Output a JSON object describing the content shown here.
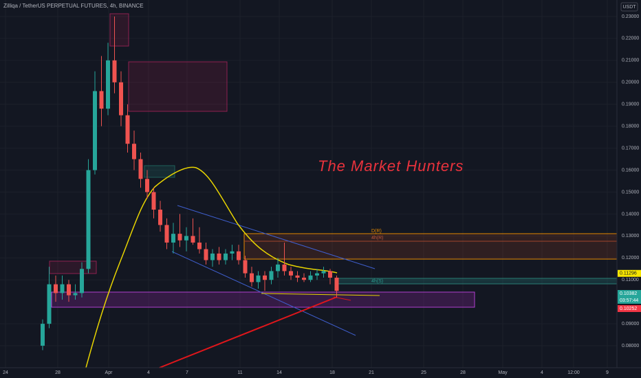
{
  "header": {
    "title": "Zilliqa / TetherUS PERPETUAL FUTURES, 4h, BINANCE",
    "currency": "USDT"
  },
  "watermark": "The Market Hunters",
  "zone_labels": [
    "D(R)",
    "4h(R)",
    "4h(S)"
  ],
  "chart_data": {
    "type": "candlestick",
    "up_color": "#26a69a",
    "down_color": "#ef5350",
    "candles": [
      [
        0.08,
        0.092,
        0.078,
        0.09
      ],
      [
        0.09,
        0.116,
        0.088,
        0.108
      ],
      [
        0.108,
        0.112,
        0.1,
        0.104
      ],
      [
        0.104,
        0.112,
        0.101,
        0.108
      ],
      [
        0.108,
        0.11,
        0.1,
        0.103
      ],
      [
        0.103,
        0.108,
        0.101,
        0.104
      ],
      [
        0.104,
        0.118,
        0.102,
        0.115
      ],
      [
        0.115,
        0.165,
        0.113,
        0.16
      ],
      [
        0.16,
        0.205,
        0.158,
        0.196
      ],
      [
        0.196,
        0.212,
        0.18,
        0.188
      ],
      [
        0.188,
        0.218,
        0.185,
        0.21
      ],
      [
        0.21,
        0.23,
        0.195,
        0.2
      ],
      [
        0.2,
        0.205,
        0.18,
        0.185
      ],
      [
        0.185,
        0.19,
        0.168,
        0.172
      ],
      [
        0.172,
        0.178,
        0.16,
        0.165
      ],
      [
        0.165,
        0.168,
        0.152,
        0.156
      ],
      [
        0.156,
        0.16,
        0.147,
        0.15
      ],
      [
        0.15,
        0.152,
        0.138,
        0.142
      ],
      [
        0.142,
        0.146,
        0.132,
        0.135
      ],
      [
        0.135,
        0.138,
        0.124,
        0.127
      ],
      [
        0.127,
        0.136,
        0.122,
        0.131
      ],
      [
        0.131,
        0.14,
        0.125,
        0.128
      ],
      [
        0.128,
        0.134,
        0.123,
        0.13
      ],
      [
        0.13,
        0.138,
        0.126,
        0.127
      ],
      [
        0.127,
        0.134,
        0.122,
        0.124
      ],
      [
        0.124,
        0.127,
        0.117,
        0.119
      ],
      [
        0.119,
        0.124,
        0.116,
        0.122
      ],
      [
        0.122,
        0.125,
        0.117,
        0.119
      ],
      [
        0.119,
        0.124,
        0.117,
        0.122
      ],
      [
        0.122,
        0.126,
        0.119,
        0.123
      ],
      [
        0.123,
        0.126,
        0.117,
        0.119
      ],
      [
        0.119,
        0.121,
        0.111,
        0.113
      ],
      [
        0.113,
        0.116,
        0.107,
        0.109
      ],
      [
        0.109,
        0.114,
        0.106,
        0.112
      ],
      [
        0.112,
        0.114,
        0.105,
        0.11
      ],
      [
        0.11,
        0.116,
        0.108,
        0.114
      ],
      [
        0.114,
        0.12,
        0.111,
        0.117
      ],
      [
        0.117,
        0.127,
        0.112,
        0.114
      ],
      [
        0.114,
        0.116,
        0.11,
        0.112
      ],
      [
        0.112,
        0.114,
        0.109,
        0.111
      ],
      [
        0.111,
        0.113,
        0.109,
        0.11
      ],
      [
        0.11,
        0.114,
        0.109,
        0.112
      ],
      [
        0.112,
        0.115,
        0.11,
        0.113
      ],
      [
        0.113,
        0.116,
        0.111,
        0.114
      ],
      [
        0.114,
        0.115,
        0.108,
        0.111
      ],
      [
        0.111,
        0.112,
        0.102,
        0.105
      ]
    ],
    "ylim": [
      0.07,
      0.2375
    ],
    "yticks": [
      {
        "value": 0.08,
        "label": "0.08000"
      },
      {
        "value": 0.09,
        "label": "0.09000"
      },
      {
        "value": 0.11,
        "label": "0.11000"
      },
      {
        "value": 0.12,
        "label": "0.12000"
      },
      {
        "value": 0.13,
        "label": "0.13000"
      },
      {
        "value": 0.14,
        "label": "0.14000"
      },
      {
        "value": 0.15,
        "label": "0.15000"
      },
      {
        "value": 0.16,
        "label": "0.16000"
      },
      {
        "value": 0.17,
        "label": "0.17000"
      },
      {
        "value": 0.18,
        "label": "0.18000"
      },
      {
        "value": 0.19,
        "label": "0.19000"
      },
      {
        "value": 0.2,
        "label": "0.20000"
      },
      {
        "value": 0.21,
        "label": "0.21000"
      },
      {
        "value": 0.22,
        "label": "0.22000"
      },
      {
        "value": 0.23,
        "label": "0.23000"
      }
    ],
    "xticks": [
      "24",
      "28",
      "Apr",
      "4",
      "7",
      "11",
      "14",
      "18",
      "21",
      "25",
      "28",
      "May",
      "4",
      "12:00",
      "9"
    ],
    "price_labels": [
      {
        "value": 0.11296,
        "label": "0.11296"
      },
      {
        "value": 0.10382,
        "label": "0.10382"
      },
      {
        "value": 0.10252,
        "label": "0.10252"
      }
    ],
    "countdown": "03:57:44"
  }
}
